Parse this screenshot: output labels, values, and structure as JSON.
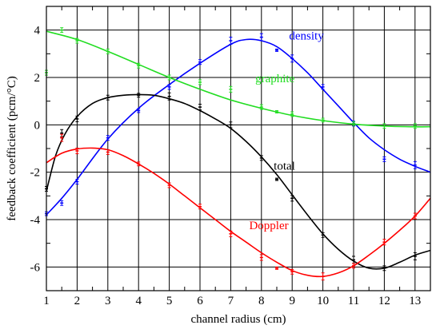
{
  "chart_data": {
    "type": "line",
    "xlabel": "channel radius (cm)",
    "ylabel": "feedback coefficient (pcm/°C)",
    "xlim": [
      1,
      13.5
    ],
    "ylim": [
      -7,
      5
    ],
    "xticks": [
      1,
      2,
      3,
      4,
      5,
      6,
      7,
      8,
      9,
      10,
      11,
      12,
      13
    ],
    "yticks": [
      -6,
      -4,
      -2,
      0,
      2,
      4
    ],
    "grid": true,
    "legend": "inline labels",
    "series": [
      {
        "name": "density",
        "color": "#0000ff",
        "points": [
          {
            "x": 1.0,
            "y": -3.75,
            "err": 0.08
          },
          {
            "x": 1.5,
            "y": -3.3,
            "err": 0.1
          },
          {
            "x": 2.0,
            "y": -2.4,
            "err": 0.1
          },
          {
            "x": 3.0,
            "y": -0.55,
            "err": 0.1
          },
          {
            "x": 4.0,
            "y": 0.6,
            "err": 0.08
          },
          {
            "x": 5.0,
            "y": 1.6,
            "err": 0.1
          },
          {
            "x": 6.0,
            "y": 2.65,
            "err": 0.1
          },
          {
            "x": 7.0,
            "y": 3.55,
            "err": 0.15
          },
          {
            "x": 8.0,
            "y": 3.7,
            "err": 0.15
          },
          {
            "x": 8.5,
            "y": 3.15,
            "err": 0.05
          },
          {
            "x": 9.0,
            "y": 2.8,
            "err": 0.15
          },
          {
            "x": 10.0,
            "y": 1.6,
            "err": 0.1
          },
          {
            "x": 11.0,
            "y": 0.05,
            "err": 0.1
          },
          {
            "x": 12.0,
            "y": -1.45,
            "err": 0.1
          },
          {
            "x": 13.0,
            "y": -1.7,
            "err": 0.15
          }
        ],
        "curve": [
          [
            1.0,
            -3.8
          ],
          [
            1.5,
            -3.1
          ],
          [
            2.0,
            -2.3
          ],
          [
            3.0,
            -0.6
          ],
          [
            4.0,
            0.7
          ],
          [
            5.0,
            1.7
          ],
          [
            6.0,
            2.6
          ],
          [
            7.0,
            3.4
          ],
          [
            7.5,
            3.6
          ],
          [
            8.0,
            3.55
          ],
          [
            8.5,
            3.3
          ],
          [
            9.0,
            2.8
          ],
          [
            9.5,
            2.2
          ],
          [
            10.0,
            1.5
          ],
          [
            10.5,
            0.8
          ],
          [
            11.0,
            0.1
          ],
          [
            11.5,
            -0.55
          ],
          [
            12.0,
            -1.05
          ],
          [
            12.5,
            -1.45
          ],
          [
            13.0,
            -1.75
          ],
          [
            13.5,
            -2.0
          ]
        ]
      },
      {
        "name": "graphite",
        "color": "#22dd22",
        "points": [
          {
            "x": 1.0,
            "y": 2.2,
            "err": 0.1
          },
          {
            "x": 1.5,
            "y": 4.0,
            "err": 0.1
          },
          {
            "x": 2.0,
            "y": 3.55,
            "err": 0.1
          },
          {
            "x": 3.0,
            "y": 3.1,
            "err": 0.1
          },
          {
            "x": 4.0,
            "y": 2.5,
            "err": 0.1
          },
          {
            "x": 5.0,
            "y": 2.0,
            "err": 0.1
          },
          {
            "x": 6.0,
            "y": 1.8,
            "err": 0.1
          },
          {
            "x": 7.0,
            "y": 1.5,
            "err": 0.12
          },
          {
            "x": 8.0,
            "y": 0.75,
            "err": 0.1
          },
          {
            "x": 8.5,
            "y": 0.55,
            "err": 0.05
          },
          {
            "x": 9.0,
            "y": 0.45,
            "err": 0.1
          },
          {
            "x": 10.0,
            "y": 0.2,
            "err": 0.08
          },
          {
            "x": 11.0,
            "y": 0.05,
            "err": 0.08
          },
          {
            "x": 12.0,
            "y": -0.05,
            "err": 0.1
          },
          {
            "x": 13.0,
            "y": -0.05,
            "err": 0.1
          }
        ],
        "curve": [
          [
            1.0,
            3.95
          ],
          [
            2.0,
            3.6
          ],
          [
            3.0,
            3.1
          ],
          [
            4.0,
            2.55
          ],
          [
            5.0,
            2.0
          ],
          [
            6.0,
            1.5
          ],
          [
            7.0,
            1.05
          ],
          [
            8.0,
            0.7
          ],
          [
            9.0,
            0.4
          ],
          [
            10.0,
            0.18
          ],
          [
            11.0,
            0.03
          ],
          [
            12.0,
            -0.05
          ],
          [
            13.0,
            -0.08
          ],
          [
            13.5,
            -0.08
          ]
        ]
      },
      {
        "name": "total",
        "color": "#000000",
        "points": [
          {
            "x": 1.0,
            "y": -2.7,
            "err": 0.1
          },
          {
            "x": 1.5,
            "y": -0.35,
            "err": 0.15
          },
          {
            "x": 2.0,
            "y": 0.25,
            "err": 0.12
          },
          {
            "x": 3.0,
            "y": 1.15,
            "err": 0.1
          },
          {
            "x": 4.0,
            "y": 1.25,
            "err": 0.08
          },
          {
            "x": 5.0,
            "y": 1.2,
            "err": 0.15
          },
          {
            "x": 6.0,
            "y": 0.75,
            "err": 0.12
          },
          {
            "x": 7.0,
            "y": 0.0,
            "err": 0.12
          },
          {
            "x": 8.0,
            "y": -1.4,
            "err": 0.1
          },
          {
            "x": 8.5,
            "y": -2.3,
            "err": 0.05
          },
          {
            "x": 9.0,
            "y": -3.1,
            "err": 0.12
          },
          {
            "x": 10.0,
            "y": -4.65,
            "err": 0.1
          },
          {
            "x": 11.0,
            "y": -5.7,
            "err": 0.15
          },
          {
            "x": 12.0,
            "y": -6.05,
            "err": 0.1
          },
          {
            "x": 13.0,
            "y": -5.55,
            "err": 0.15
          }
        ],
        "curve": [
          [
            1.0,
            -2.8
          ],
          [
            1.3,
            -1.3
          ],
          [
            1.6,
            -0.4
          ],
          [
            2.0,
            0.35
          ],
          [
            2.5,
            0.9
          ],
          [
            3.0,
            1.15
          ],
          [
            3.5,
            1.25
          ],
          [
            4.0,
            1.28
          ],
          [
            4.5,
            1.25
          ],
          [
            5.0,
            1.1
          ],
          [
            5.5,
            0.9
          ],
          [
            6.0,
            0.6
          ],
          [
            6.5,
            0.25
          ],
          [
            7.0,
            -0.15
          ],
          [
            7.5,
            -0.7
          ],
          [
            8.0,
            -1.35
          ],
          [
            8.5,
            -2.1
          ],
          [
            9.0,
            -2.95
          ],
          [
            9.5,
            -3.8
          ],
          [
            10.0,
            -4.6
          ],
          [
            10.5,
            -5.25
          ],
          [
            11.0,
            -5.75
          ],
          [
            11.5,
            -6.05
          ],
          [
            12.0,
            -6.05
          ],
          [
            12.5,
            -5.8
          ],
          [
            13.0,
            -5.5
          ],
          [
            13.5,
            -5.3
          ]
        ]
      },
      {
        "name": "Doppler",
        "color": "#ff0000",
        "points": [
          {
            "x": 1.5,
            "y": -0.55,
            "err": 0.15
          },
          {
            "x": 2.0,
            "y": -1.1,
            "err": 0.12
          },
          {
            "x": 3.0,
            "y": -1.15,
            "err": 0.1
          },
          {
            "x": 4.0,
            "y": -1.65,
            "err": 0.08
          },
          {
            "x": 5.0,
            "y": -2.55,
            "err": 0.1
          },
          {
            "x": 6.0,
            "y": -3.45,
            "err": 0.1
          },
          {
            "x": 7.0,
            "y": -4.6,
            "err": 0.12
          },
          {
            "x": 8.0,
            "y": -5.6,
            "err": 0.12
          },
          {
            "x": 8.5,
            "y": -6.05,
            "err": 0.05
          },
          {
            "x": 9.0,
            "y": -6.2,
            "err": 0.1
          },
          {
            "x": 10.0,
            "y": -6.4,
            "err": 0.15
          },
          {
            "x": 11.0,
            "y": -5.95,
            "err": 0.1
          },
          {
            "x": 12.0,
            "y": -4.95,
            "err": 0.12
          },
          {
            "x": 13.0,
            "y": -3.85,
            "err": 0.12
          }
        ],
        "curve": [
          [
            1.0,
            -1.6
          ],
          [
            1.5,
            -1.2
          ],
          [
            2.0,
            -1.02
          ],
          [
            2.5,
            -0.98
          ],
          [
            3.0,
            -1.05
          ],
          [
            3.5,
            -1.3
          ],
          [
            4.0,
            -1.65
          ],
          [
            4.5,
            -2.05
          ],
          [
            5.0,
            -2.5
          ],
          [
            5.5,
            -3.0
          ],
          [
            6.0,
            -3.5
          ],
          [
            6.5,
            -4.0
          ],
          [
            7.0,
            -4.5
          ],
          [
            7.5,
            -4.95
          ],
          [
            8.0,
            -5.4
          ],
          [
            8.5,
            -5.8
          ],
          [
            9.0,
            -6.15
          ],
          [
            9.5,
            -6.35
          ],
          [
            10.0,
            -6.4
          ],
          [
            10.5,
            -6.25
          ],
          [
            11.0,
            -5.95
          ],
          [
            11.5,
            -5.5
          ],
          [
            12.0,
            -5.0
          ],
          [
            12.5,
            -4.45
          ],
          [
            13.0,
            -3.85
          ],
          [
            13.5,
            -3.1
          ]
        ]
      }
    ]
  }
}
